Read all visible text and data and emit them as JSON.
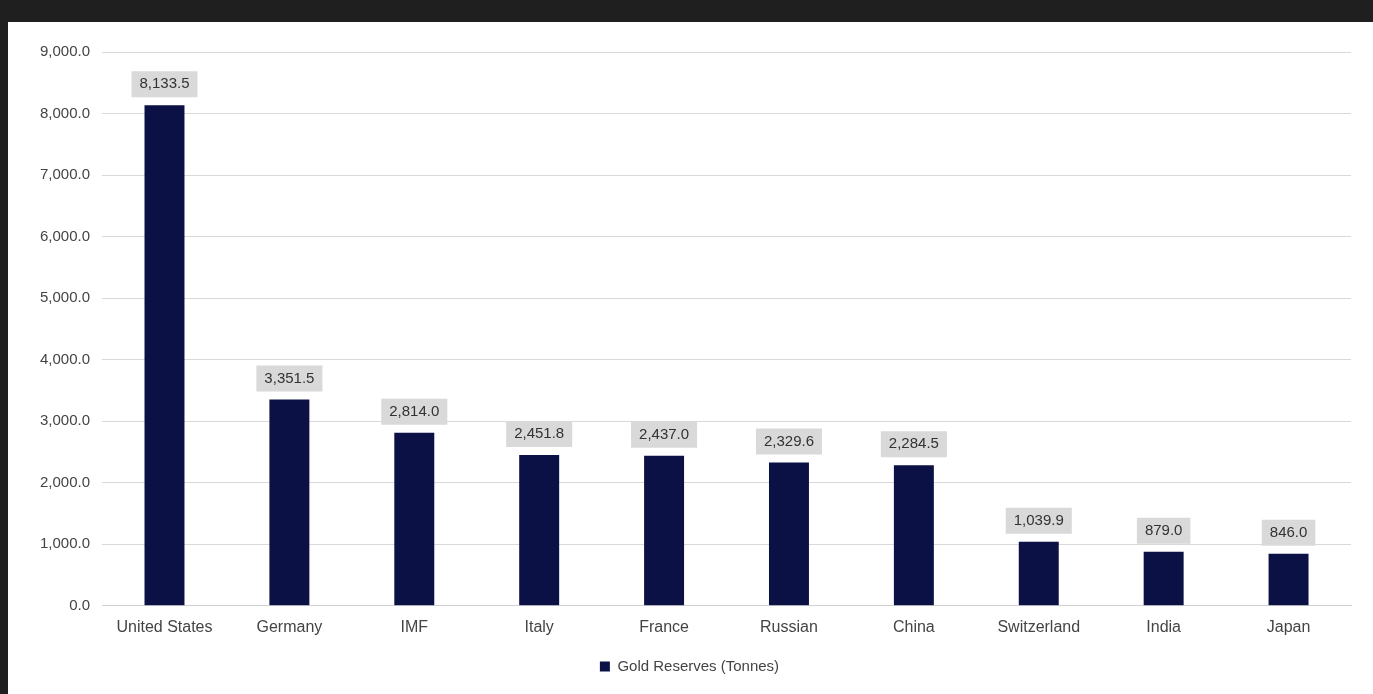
{
  "chart_data": {
    "type": "bar",
    "categories": [
      "United States",
      "Germany",
      "IMF",
      "Italy",
      "France",
      "Russian",
      "China",
      "Switzerland",
      "India",
      "Japan"
    ],
    "series": [
      {
        "name": "Gold Reserves (Tonnes)",
        "color": "#0b1145",
        "values": [
          8133.5,
          3351.5,
          2814.0,
          2451.8,
          2437.0,
          2329.6,
          2284.5,
          1039.9,
          879.0,
          846.0
        ],
        "value_labels": [
          "8,133.5",
          "3,351.5",
          "2,814.0",
          "2,451.8",
          "2,437.0",
          "2,329.6",
          "2,284.5",
          "1,039.9",
          "879.0",
          "846.0"
        ]
      }
    ],
    "ylim": [
      0,
      9000
    ],
    "yticks": [
      {
        "value": 0,
        "label": "0.0"
      },
      {
        "value": 1000,
        "label": "1,000.0"
      },
      {
        "value": 2000,
        "label": "2,000.0"
      },
      {
        "value": 3000,
        "label": "3,000.0"
      },
      {
        "value": 4000,
        "label": "4,000.0"
      },
      {
        "value": 5000,
        "label": "5,000.0"
      },
      {
        "value": 6000,
        "label": "6,000.0"
      },
      {
        "value": 7000,
        "label": "7,000.0"
      },
      {
        "value": 8000,
        "label": "8,000.0"
      },
      {
        "value": 9000,
        "label": "9,000.0"
      }
    ],
    "grid": "y",
    "legend": "bottom"
  }
}
